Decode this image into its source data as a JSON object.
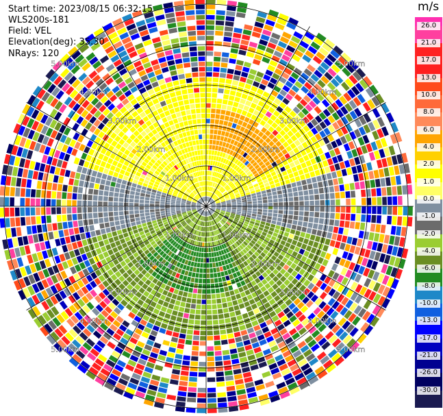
{
  "header": {
    "start_time": "Start time: 2023/08/15 06:32:15",
    "instrument": "WLS200s-181",
    "field": "Field: VEL",
    "elevation": "Elevation(deg): 35.30",
    "nrays": "NRays: 120"
  },
  "plot": {
    "range_labels": [
      "1.00km",
      "2.00km",
      "3.00km",
      "4.00km",
      "5.00km"
    ],
    "ring_count": 5
  },
  "colorbar": {
    "unit": "m/s",
    "levels": [
      {
        "label": "26.0",
        "color": "#ff3f9f"
      },
      {
        "label": "21.0",
        "color": "#ff2222"
      },
      {
        "label": "17.0",
        "color": "#ff1f1f"
      },
      {
        "label": "13.0",
        "color": "#ff4a1a"
      },
      {
        "label": "10.0",
        "color": "#ff6a3a"
      },
      {
        "label": "8.0",
        "color": "#ff8a5a"
      },
      {
        "label": "6.0",
        "color": "#ffa500"
      },
      {
        "label": "4.0",
        "color": "#ffd000"
      },
      {
        "label": "2.0",
        "color": "#ffff00"
      },
      {
        "label": "1.0",
        "color": "#ffff66"
      },
      {
        "label": "0.0",
        "color": "#7f8fa0"
      },
      {
        "label": "-1.0",
        "color": "#6b6b6b"
      },
      {
        "label": "-2.0",
        "color": "#9acd32"
      },
      {
        "label": "-4.0",
        "color": "#6b8e23"
      },
      {
        "label": "-6.0",
        "color": "#228b22"
      },
      {
        "label": "-8.0",
        "color": "#1e88c8"
      },
      {
        "label": "-10.0",
        "color": "#1060e0"
      },
      {
        "label": "-13.0",
        "color": "#0000ff"
      },
      {
        "label": "-17.0",
        "color": "#0000c0"
      },
      {
        "label": "-21.0",
        "color": "#000090"
      },
      {
        "label": "-26.0",
        "color": "#000060"
      },
      {
        "label": "-30.0",
        "color": "#1a1a50"
      }
    ],
    "top_color": "#ff2fb0"
  }
}
